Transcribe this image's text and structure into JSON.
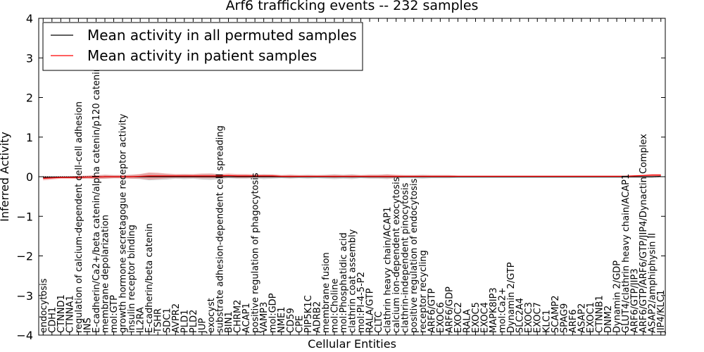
{
  "chart_data": {
    "type": "line",
    "title": "Arf6 trafficking events -- 232 samples",
    "xlabel": "Cellular Entities",
    "ylabel": "Inferred Activity",
    "ylim": [
      -4,
      4
    ],
    "yticks": [
      -4,
      -3,
      -2,
      -1,
      0,
      1,
      2,
      3,
      4
    ],
    "ytick_labels": [
      "−4",
      "−3",
      "−2",
      "−1",
      "0",
      "1",
      "2",
      "3",
      "4"
    ],
    "legend_position": "top-left",
    "categories": [
      "endocytosis",
      "CDH1",
      "CTNND1",
      "CTNNA1",
      "regulation of calcium-dependent cell-cell adhesion",
      "INS",
      "E-cadherin/Ca2+/beta catenin/alpha catenin/p120 catenin",
      "membrane depolarization",
      "mol:GTP",
      "growth hormone secretagogue receptor activity",
      "insulin receptor binding",
      "IL2RA",
      "E-cadherin/beta catenin",
      "TSHR",
      "SDC1",
      "AVPR2",
      "PLD1",
      "PLD2",
      "JUP",
      "exocyst",
      "substrate adhesion-dependent cell spreading",
      "BIN1",
      "CHRM2",
      "ACAP1",
      "positive regulation of phagocytosis",
      "VAMP3",
      "mol:GDP",
      "NME1",
      "CD59",
      "CPE",
      "PIP5K1C",
      "ADRB2",
      "membrane fusion",
      "mol:Choline",
      "mol:Phosphatidic acid",
      "clathrin coat assembly",
      "mol:PI-4-5-P2",
      "RALA/GTP",
      "CLTC",
      "clathrin heavy chain/ACAP1",
      "calcium ion-dependent exocytosis",
      "clathrin-independent pinocytosis",
      "positive regulation of endocytosis",
      "receptor recycling",
      "ARF6/GTP",
      "EXOC6",
      "ARF6/GDP",
      "EXOC2",
      "RALA",
      "EXOC5",
      "EXOC4",
      "MAPK8IP3",
      "mol:Ca2+",
      "Dynamin 2/GTP",
      "SLC2A4",
      "EXOC3",
      "EXOC7",
      "KLC1",
      "SCAMP2",
      "SPAG9",
      "ARF6",
      "ASAP2",
      "EXOC1",
      "CTNNB1",
      "DNM2",
      "Dynamin 2/GDP",
      "GLUT4/clathrin heavy chain/ACAP1",
      "ARF6/GTP/JIP3",
      "ARF6/GTP/ARF6/GTP/JIP4/Dynactin Complex",
      "ASAP2/amphiphysin II",
      "JIP4/KLC1"
    ],
    "series": [
      {
        "name": "Mean activity in all permuted samples",
        "color": "#000000",
        "values": [
          -0.02,
          -0.02,
          -0.01,
          -0.01,
          -0.01,
          -0.01,
          -0.01,
          0,
          0,
          0,
          0,
          0,
          0,
          0,
          0,
          0,
          0,
          0,
          0,
          0,
          0,
          0,
          0,
          0,
          0,
          0,
          0,
          0,
          0,
          0,
          0,
          0,
          0,
          0,
          0,
          0,
          0,
          0,
          0,
          0,
          0,
          0,
          0,
          0,
          0,
          0,
          0,
          0,
          0,
          0,
          0,
          0,
          0,
          0,
          0,
          0,
          0,
          0,
          0,
          0,
          0,
          0,
          0,
          0,
          0,
          0,
          0,
          0,
          0,
          0,
          0.01
        ],
        "band": [
          0.04,
          0.03,
          0.02,
          0.02,
          0.03,
          0.03,
          0.04,
          0.05,
          0.04,
          0.04,
          0.05,
          0.06,
          0.09,
          0.08,
          0.07,
          0.05,
          0.06,
          0.05,
          0.07,
          0.08,
          0.06,
          0.04,
          0.05,
          0.05,
          0.04,
          0.06,
          0.05,
          0.04,
          0.05,
          0.04,
          0.05,
          0.04,
          0.05,
          0.06,
          0.05,
          0.06,
          0.04,
          0.05,
          0.05,
          0.06,
          0.04,
          0.04,
          0.04,
          0.05,
          0.04,
          0.04,
          0.04,
          0.03,
          0.03,
          0.03,
          0.03,
          0.03,
          0.03,
          0.03,
          0.03,
          0.03,
          0.03,
          0.03,
          0.03,
          0.03,
          0.03,
          0.03,
          0.03,
          0.03,
          0.03,
          0.03,
          0.03,
          0.03,
          0.03,
          0.03,
          0.03
        ],
        "band_color": "#999999"
      },
      {
        "name": "Mean activity in patient samples",
        "color": "#ff0000",
        "values": [
          -0.04,
          -0.03,
          -0.02,
          -0.02,
          -0.02,
          -0.01,
          -0.01,
          0,
          0,
          0,
          0,
          0.01,
          0.02,
          0.02,
          0.02,
          0.02,
          0.02,
          0.02,
          0.02,
          0.02,
          0.02,
          0.03,
          0.02,
          0.02,
          0.02,
          0.02,
          0.02,
          0.01,
          0.01,
          0.01,
          0.01,
          0.01,
          0.01,
          0.01,
          0.01,
          0.01,
          0.01,
          0.01,
          0.01,
          0.01,
          0.01,
          0.01,
          0.01,
          0.01,
          0.01,
          0.01,
          0.01,
          0.01,
          0.01,
          0.01,
          0.01,
          0.01,
          0.01,
          0.01,
          0.01,
          0.01,
          0.01,
          0.01,
          0.01,
          0.01,
          0.01,
          0.01,
          0.01,
          0.01,
          0.01,
          0.01,
          0.01,
          0.02,
          0.03,
          0.04,
          0.04
        ],
        "band": [
          0.05,
          0.04,
          0.03,
          0.03,
          0.04,
          0.04,
          0.05,
          0.05,
          0.04,
          0.04,
          0.05,
          0.06,
          0.09,
          0.08,
          0.06,
          0.05,
          0.05,
          0.05,
          0.06,
          0.06,
          0.05,
          0.05,
          0.05,
          0.05,
          0.04,
          0.04,
          0.04,
          0.03,
          0.04,
          0.03,
          0.03,
          0.03,
          0.03,
          0.04,
          0.03,
          0.04,
          0.03,
          0.04,
          0.04,
          0.05,
          0.04,
          0.03,
          0.03,
          0.03,
          0.03,
          0.03,
          0.03,
          0.02,
          0.02,
          0.02,
          0.02,
          0.02,
          0.02,
          0.02,
          0.02,
          0.02,
          0.02,
          0.02,
          0.02,
          0.02,
          0.02,
          0.02,
          0.02,
          0.02,
          0.02,
          0.02,
          0.02,
          0.02,
          0.02,
          0.03,
          0.03
        ],
        "band_color": "#f08080"
      }
    ]
  }
}
